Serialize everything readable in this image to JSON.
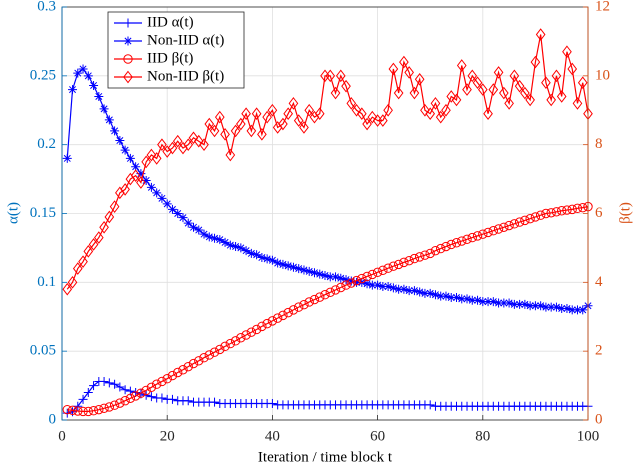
{
  "chart_data": {
    "type": "line",
    "xlabel": "Iteration / time block t",
    "ylabel": "α(t)",
    "y2label": "β(t)",
    "xlim": [
      0,
      100
    ],
    "xticks": [
      0,
      20,
      40,
      60,
      80,
      100
    ],
    "ylim": [
      0,
      0.3
    ],
    "yticks": [
      0,
      0.05,
      0.1,
      0.15,
      0.2,
      0.25,
      0.3
    ],
    "y2lim": [
      0,
      12
    ],
    "y2ticks": [
      0,
      2,
      4,
      6,
      8,
      10,
      12
    ],
    "grid": true,
    "legend": "upper left",
    "ycolor": "#0072bd",
    "y2color": "#d95319",
    "x": [
      1,
      2,
      3,
      4,
      5,
      6,
      7,
      8,
      9,
      10,
      11,
      12,
      13,
      14,
      15,
      16,
      17,
      18,
      19,
      20,
      21,
      22,
      23,
      24,
      25,
      26,
      27,
      28,
      29,
      30,
      31,
      32,
      33,
      34,
      35,
      36,
      37,
      38,
      39,
      40,
      41,
      42,
      43,
      44,
      45,
      46,
      47,
      48,
      49,
      50,
      51,
      52,
      53,
      54,
      55,
      56,
      57,
      58,
      59,
      60,
      61,
      62,
      63,
      64,
      65,
      66,
      67,
      68,
      69,
      70,
      71,
      72,
      73,
      74,
      75,
      76,
      77,
      78,
      79,
      80,
      81,
      82,
      83,
      84,
      85,
      86,
      87,
      88,
      89,
      90,
      91,
      92,
      93,
      94,
      95,
      96,
      97,
      98,
      99,
      100
    ],
    "series": [
      {
        "name": "IID α(t)",
        "color": "#0000ff",
        "marker": "plus",
        "values": [
          0.005,
          0.006,
          0.01,
          0.015,
          0.02,
          0.025,
          0.028,
          0.028,
          0.027,
          0.026,
          0.024,
          0.022,
          0.021,
          0.02,
          0.019,
          0.018,
          0.017,
          0.016,
          0.016,
          0.015,
          0.015,
          0.014,
          0.014,
          0.014,
          0.013,
          0.013,
          0.013,
          0.013,
          0.013,
          0.012,
          0.012,
          0.012,
          0.012,
          0.012,
          0.012,
          0.012,
          0.012,
          0.012,
          0.012,
          0.012,
          0.011,
          0.011,
          0.011,
          0.011,
          0.011,
          0.011,
          0.011,
          0.011,
          0.011,
          0.011,
          0.011,
          0.011,
          0.011,
          0.011,
          0.011,
          0.011,
          0.011,
          0.011,
          0.011,
          0.011,
          0.011,
          0.011,
          0.011,
          0.011,
          0.011,
          0.011,
          0.011,
          0.011,
          0.011,
          0.011,
          0.01,
          0.01,
          0.01,
          0.01,
          0.01,
          0.01,
          0.01,
          0.01,
          0.01,
          0.01,
          0.01,
          0.01,
          0.01,
          0.01,
          0.01,
          0.01,
          0.01,
          0.01,
          0.01,
          0.01,
          0.01,
          0.01,
          0.01,
          0.01,
          0.01,
          0.01,
          0.01,
          0.01,
          0.01,
          0.01
        ]
      },
      {
        "name": "Non-IID α(t)",
        "color": "#0000ff",
        "marker": "star",
        "values": [
          0.19,
          0.24,
          0.252,
          0.255,
          0.25,
          0.243,
          0.235,
          0.226,
          0.218,
          0.21,
          0.203,
          0.196,
          0.19,
          0.184,
          0.179,
          0.174,
          0.169,
          0.165,
          0.161,
          0.157,
          0.153,
          0.15,
          0.147,
          0.143,
          0.14,
          0.138,
          0.135,
          0.133,
          0.132,
          0.131,
          0.129,
          0.127,
          0.126,
          0.125,
          0.123,
          0.121,
          0.12,
          0.118,
          0.117,
          0.116,
          0.114,
          0.113,
          0.112,
          0.111,
          0.11,
          0.109,
          0.108,
          0.107,
          0.106,
          0.105,
          0.104,
          0.104,
          0.103,
          0.102,
          0.101,
          0.1,
          0.1,
          0.099,
          0.098,
          0.098,
          0.097,
          0.097,
          0.096,
          0.095,
          0.095,
          0.094,
          0.094,
          0.093,
          0.092,
          0.092,
          0.091,
          0.09,
          0.09,
          0.089,
          0.089,
          0.088,
          0.088,
          0.087,
          0.087,
          0.086,
          0.086,
          0.086,
          0.085,
          0.085,
          0.085,
          0.084,
          0.084,
          0.084,
          0.083,
          0.083,
          0.083,
          0.082,
          0.082,
          0.082,
          0.081,
          0.081,
          0.08,
          0.08,
          0.08,
          0.083
        ]
      },
      {
        "name": "IID β(t)",
        "color": "#ff0000",
        "marker": "circle",
        "axis": "y2",
        "values": [
          0.3,
          0.28,
          0.26,
          0.25,
          0.25,
          0.27,
          0.3,
          0.34,
          0.38,
          0.43,
          0.49,
          0.56,
          0.63,
          0.7,
          0.78,
          0.86,
          0.95,
          1.04,
          1.12,
          1.2,
          1.29,
          1.38,
          1.46,
          1.55,
          1.64,
          1.72,
          1.81,
          1.89,
          1.97,
          2.05,
          2.14,
          2.22,
          2.3,
          2.39,
          2.47,
          2.55,
          2.63,
          2.72,
          2.8,
          2.88,
          2.96,
          3.04,
          3.12,
          3.2,
          3.28,
          3.35,
          3.43,
          3.5,
          3.57,
          3.64,
          3.71,
          3.78,
          3.85,
          3.92,
          3.98,
          4.05,
          4.11,
          4.17,
          4.23,
          4.29,
          4.35,
          4.41,
          4.47,
          4.52,
          4.58,
          4.63,
          4.69,
          4.74,
          4.79,
          4.84,
          4.92,
          4.98,
          5.04,
          5.1,
          5.15,
          5.2,
          5.25,
          5.3,
          5.35,
          5.4,
          5.45,
          5.5,
          5.55,
          5.6,
          5.65,
          5.7,
          5.75,
          5.8,
          5.85,
          5.9,
          5.95,
          6.0,
          6.02,
          6.05,
          6.08,
          6.1,
          6.12,
          6.15,
          6.17,
          6.2
        ]
      },
      {
        "name": "Non-IID β(t)",
        "color": "#ff0000",
        "marker": "diamond",
        "axis": "y2",
        "values": [
          3.8,
          4.0,
          4.4,
          4.6,
          4.9,
          5.1,
          5.3,
          5.6,
          5.9,
          6.2,
          6.6,
          6.7,
          7.0,
          7.1,
          6.9,
          7.5,
          7.7,
          7.6,
          8.0,
          7.8,
          7.9,
          8.1,
          7.9,
          8.0,
          8.2,
          8.1,
          8.0,
          8.6,
          8.4,
          8.8,
          8.3,
          7.7,
          8.4,
          8.6,
          8.9,
          8.4,
          8.9,
          8.3,
          8.8,
          9.0,
          8.5,
          8.6,
          8.9,
          9.2,
          8.7,
          8.5,
          9.0,
          8.8,
          8.9,
          10.0,
          10.0,
          9.5,
          10.0,
          9.7,
          9.2,
          9.0,
          8.9,
          8.6,
          8.8,
          8.7,
          8.7,
          9.0,
          10.2,
          9.5,
          10.4,
          10.1,
          9.5,
          9.9,
          9.0,
          8.9,
          9.2,
          8.8,
          9.0,
          9.4,
          9.3,
          10.3,
          9.6,
          10.0,
          9.8,
          9.6,
          8.9,
          9.6,
          10.1,
          9.5,
          9.2,
          10.0,
          9.7,
          9.5,
          9.3,
          10.4,
          11.2,
          9.8,
          9.3,
          10.0,
          9.4,
          10.7,
          10.2,
          9.2,
          9.8,
          8.9
        ]
      }
    ]
  }
}
